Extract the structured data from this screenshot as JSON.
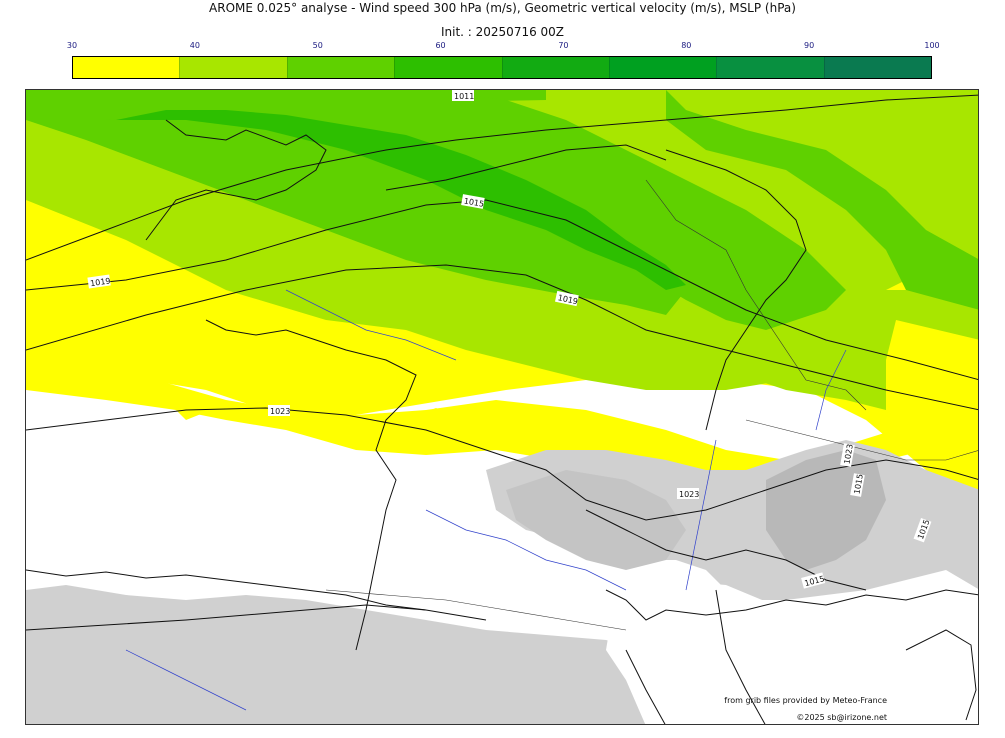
{
  "header": {
    "title": "AROME 0.025° analyse - Wind speed 300 hPa (m/s), Geometric vertical velocity (m/s), MSLP (hPa)",
    "init": "Init. : 20250716 00Z"
  },
  "colorbar": {
    "ticks": [
      "30",
      "40",
      "50",
      "60",
      "70",
      "80",
      "90",
      "100"
    ],
    "colors": [
      "#ffff00",
      "#a8e600",
      "#5fd100",
      "#2dbf00",
      "#12ab12",
      "#00a020",
      "#089040",
      "#0a7a50"
    ]
  },
  "map": {
    "isobar_labels": [
      "1011",
      "1015",
      "1019",
      "1019",
      "1023",
      "1023",
      "1023",
      "1015",
      "1015",
      "1015"
    ],
    "colors": {
      "land_white": "#ffffff",
      "relief_gray": "#cfcfcf",
      "rivers": "#3344cc",
      "coast": "#111111"
    }
  },
  "credits": {
    "line1": "from grib files provided by Meteo-France",
    "line2": "©2025 sb@irizone.net"
  }
}
